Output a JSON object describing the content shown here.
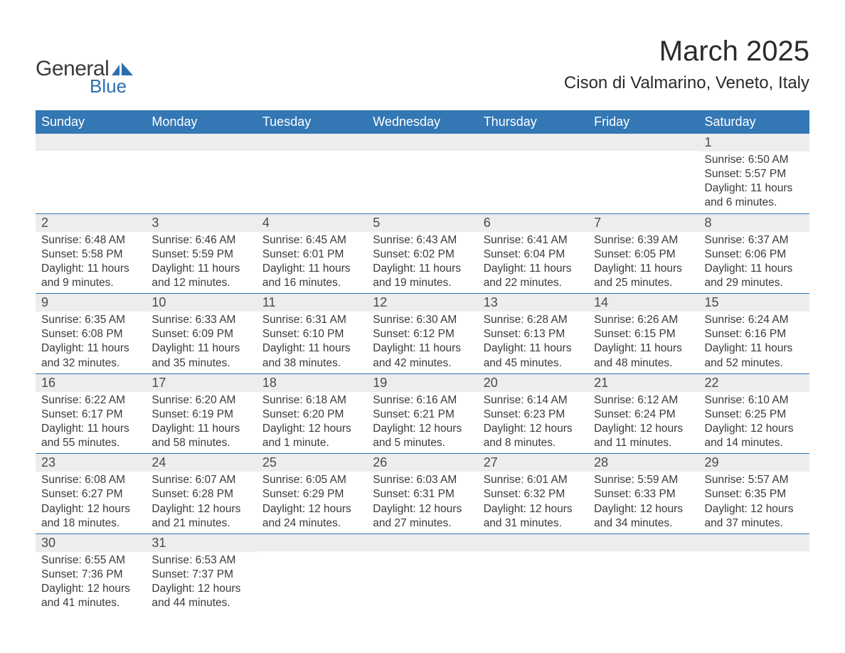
{
  "logo": {
    "text_general": "General",
    "text_blue": "Blue",
    "shape_color": "#2d6fae"
  },
  "title": "March 2025",
  "location": "Cison di Valmarino, Veneto, Italy",
  "colors": {
    "header_bg": "#3377b5",
    "header_text": "#ffffff",
    "daynum_bg": "#ededed",
    "row_border": "#3377b5",
    "text": "#3a3a3a",
    "logo_blue": "#2d6fae"
  },
  "day_headers": [
    "Sunday",
    "Monday",
    "Tuesday",
    "Wednesday",
    "Thursday",
    "Friday",
    "Saturday"
  ],
  "weeks": [
    [
      null,
      null,
      null,
      null,
      null,
      null,
      {
        "n": "1",
        "sunrise": "Sunrise: 6:50 AM",
        "sunset": "Sunset: 5:57 PM",
        "dl1": "Daylight: 11 hours",
        "dl2": "and 6 minutes."
      }
    ],
    [
      {
        "n": "2",
        "sunrise": "Sunrise: 6:48 AM",
        "sunset": "Sunset: 5:58 PM",
        "dl1": "Daylight: 11 hours",
        "dl2": "and 9 minutes."
      },
      {
        "n": "3",
        "sunrise": "Sunrise: 6:46 AM",
        "sunset": "Sunset: 5:59 PM",
        "dl1": "Daylight: 11 hours",
        "dl2": "and 12 minutes."
      },
      {
        "n": "4",
        "sunrise": "Sunrise: 6:45 AM",
        "sunset": "Sunset: 6:01 PM",
        "dl1": "Daylight: 11 hours",
        "dl2": "and 16 minutes."
      },
      {
        "n": "5",
        "sunrise": "Sunrise: 6:43 AM",
        "sunset": "Sunset: 6:02 PM",
        "dl1": "Daylight: 11 hours",
        "dl2": "and 19 minutes."
      },
      {
        "n": "6",
        "sunrise": "Sunrise: 6:41 AM",
        "sunset": "Sunset: 6:04 PM",
        "dl1": "Daylight: 11 hours",
        "dl2": "and 22 minutes."
      },
      {
        "n": "7",
        "sunrise": "Sunrise: 6:39 AM",
        "sunset": "Sunset: 6:05 PM",
        "dl1": "Daylight: 11 hours",
        "dl2": "and 25 minutes."
      },
      {
        "n": "8",
        "sunrise": "Sunrise: 6:37 AM",
        "sunset": "Sunset: 6:06 PM",
        "dl1": "Daylight: 11 hours",
        "dl2": "and 29 minutes."
      }
    ],
    [
      {
        "n": "9",
        "sunrise": "Sunrise: 6:35 AM",
        "sunset": "Sunset: 6:08 PM",
        "dl1": "Daylight: 11 hours",
        "dl2": "and 32 minutes."
      },
      {
        "n": "10",
        "sunrise": "Sunrise: 6:33 AM",
        "sunset": "Sunset: 6:09 PM",
        "dl1": "Daylight: 11 hours",
        "dl2": "and 35 minutes."
      },
      {
        "n": "11",
        "sunrise": "Sunrise: 6:31 AM",
        "sunset": "Sunset: 6:10 PM",
        "dl1": "Daylight: 11 hours",
        "dl2": "and 38 minutes."
      },
      {
        "n": "12",
        "sunrise": "Sunrise: 6:30 AM",
        "sunset": "Sunset: 6:12 PM",
        "dl1": "Daylight: 11 hours",
        "dl2": "and 42 minutes."
      },
      {
        "n": "13",
        "sunrise": "Sunrise: 6:28 AM",
        "sunset": "Sunset: 6:13 PM",
        "dl1": "Daylight: 11 hours",
        "dl2": "and 45 minutes."
      },
      {
        "n": "14",
        "sunrise": "Sunrise: 6:26 AM",
        "sunset": "Sunset: 6:15 PM",
        "dl1": "Daylight: 11 hours",
        "dl2": "and 48 minutes."
      },
      {
        "n": "15",
        "sunrise": "Sunrise: 6:24 AM",
        "sunset": "Sunset: 6:16 PM",
        "dl1": "Daylight: 11 hours",
        "dl2": "and 52 minutes."
      }
    ],
    [
      {
        "n": "16",
        "sunrise": "Sunrise: 6:22 AM",
        "sunset": "Sunset: 6:17 PM",
        "dl1": "Daylight: 11 hours",
        "dl2": "and 55 minutes."
      },
      {
        "n": "17",
        "sunrise": "Sunrise: 6:20 AM",
        "sunset": "Sunset: 6:19 PM",
        "dl1": "Daylight: 11 hours",
        "dl2": "and 58 minutes."
      },
      {
        "n": "18",
        "sunrise": "Sunrise: 6:18 AM",
        "sunset": "Sunset: 6:20 PM",
        "dl1": "Daylight: 12 hours",
        "dl2": "and 1 minute."
      },
      {
        "n": "19",
        "sunrise": "Sunrise: 6:16 AM",
        "sunset": "Sunset: 6:21 PM",
        "dl1": "Daylight: 12 hours",
        "dl2": "and 5 minutes."
      },
      {
        "n": "20",
        "sunrise": "Sunrise: 6:14 AM",
        "sunset": "Sunset: 6:23 PM",
        "dl1": "Daylight: 12 hours",
        "dl2": "and 8 minutes."
      },
      {
        "n": "21",
        "sunrise": "Sunrise: 6:12 AM",
        "sunset": "Sunset: 6:24 PM",
        "dl1": "Daylight: 12 hours",
        "dl2": "and 11 minutes."
      },
      {
        "n": "22",
        "sunrise": "Sunrise: 6:10 AM",
        "sunset": "Sunset: 6:25 PM",
        "dl1": "Daylight: 12 hours",
        "dl2": "and 14 minutes."
      }
    ],
    [
      {
        "n": "23",
        "sunrise": "Sunrise: 6:08 AM",
        "sunset": "Sunset: 6:27 PM",
        "dl1": "Daylight: 12 hours",
        "dl2": "and 18 minutes."
      },
      {
        "n": "24",
        "sunrise": "Sunrise: 6:07 AM",
        "sunset": "Sunset: 6:28 PM",
        "dl1": "Daylight: 12 hours",
        "dl2": "and 21 minutes."
      },
      {
        "n": "25",
        "sunrise": "Sunrise: 6:05 AM",
        "sunset": "Sunset: 6:29 PM",
        "dl1": "Daylight: 12 hours",
        "dl2": "and 24 minutes."
      },
      {
        "n": "26",
        "sunrise": "Sunrise: 6:03 AM",
        "sunset": "Sunset: 6:31 PM",
        "dl1": "Daylight: 12 hours",
        "dl2": "and 27 minutes."
      },
      {
        "n": "27",
        "sunrise": "Sunrise: 6:01 AM",
        "sunset": "Sunset: 6:32 PM",
        "dl1": "Daylight: 12 hours",
        "dl2": "and 31 minutes."
      },
      {
        "n": "28",
        "sunrise": "Sunrise: 5:59 AM",
        "sunset": "Sunset: 6:33 PM",
        "dl1": "Daylight: 12 hours",
        "dl2": "and 34 minutes."
      },
      {
        "n": "29",
        "sunrise": "Sunrise: 5:57 AM",
        "sunset": "Sunset: 6:35 PM",
        "dl1": "Daylight: 12 hours",
        "dl2": "and 37 minutes."
      }
    ],
    [
      {
        "n": "30",
        "sunrise": "Sunrise: 6:55 AM",
        "sunset": "Sunset: 7:36 PM",
        "dl1": "Daylight: 12 hours",
        "dl2": "and 41 minutes."
      },
      {
        "n": "31",
        "sunrise": "Sunrise: 6:53 AM",
        "sunset": "Sunset: 7:37 PM",
        "dl1": "Daylight: 12 hours",
        "dl2": "and 44 minutes."
      },
      null,
      null,
      null,
      null,
      null
    ]
  ]
}
